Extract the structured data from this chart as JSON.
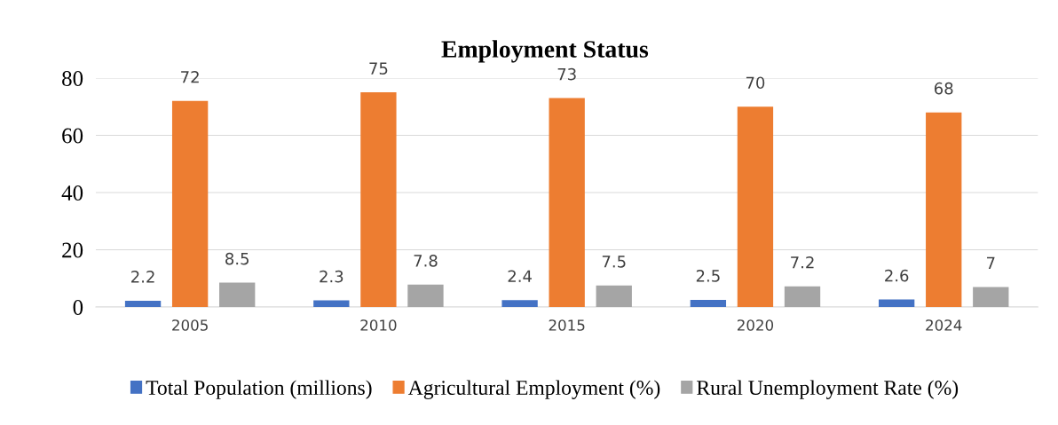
{
  "chart_data": {
    "type": "bar",
    "title": "Employment Status",
    "categories": [
      "2005",
      "2010",
      "2015",
      "2020",
      "2024"
    ],
    "series": [
      {
        "name": "Total Population (millions)",
        "color": "#4472c4",
        "values": [
          2.2,
          2.3,
          2.4,
          2.5,
          2.6
        ]
      },
      {
        "name": "Agricultural Employment (%)",
        "color": "#ed7d31",
        "values": [
          72,
          75,
          73,
          70,
          68
        ]
      },
      {
        "name": "Rural Unemployment Rate (%)",
        "color": "#a5a5a5",
        "values": [
          8.5,
          7.8,
          7.5,
          7.2,
          7
        ]
      }
    ],
    "ylim": [
      0,
      80
    ],
    "yticks": [
      0,
      20,
      40,
      60,
      80
    ],
    "grid": "y",
    "legend": "bottom",
    "data_labels": true
  }
}
